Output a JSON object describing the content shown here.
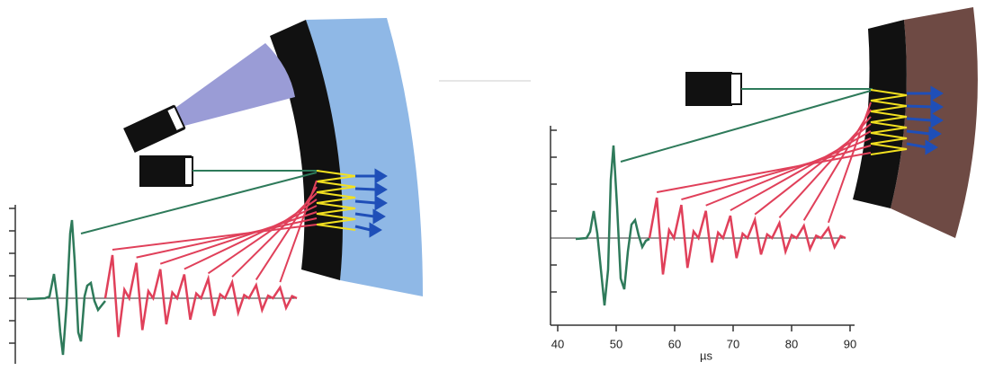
{
  "right_panel": {
    "x_axis": {
      "ticks": [
        "40",
        "50",
        "60",
        "70",
        "80",
        "90"
      ],
      "unit": "µs"
    }
  }
}
